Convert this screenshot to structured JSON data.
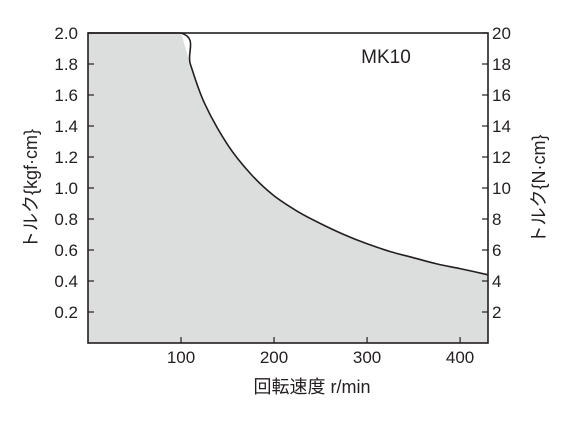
{
  "chart_data": {
    "type": "area",
    "annotation": "MK10",
    "xlabel": "回転速度 r/min",
    "ylabel_left": "トルク{kgf·cm}",
    "ylabel_right": "トルク{N·cm}",
    "xlim": [
      0,
      430
    ],
    "ylim_left": [
      0,
      2.0
    ],
    "ylim_right": [
      0,
      20
    ],
    "x_ticks": [
      100,
      200,
      300,
      400
    ],
    "y_ticks_left": [
      "0.2",
      "0.4",
      "0.6",
      "0.8",
      "1.0",
      "1.2",
      "1.4",
      "1.6",
      "1.8",
      "2.0"
    ],
    "y_ticks_right": [
      "2",
      "4",
      "6",
      "8",
      "10",
      "12",
      "14",
      "16",
      "18",
      "20"
    ],
    "grid": false,
    "fill_color": "#dcdddd",
    "series": [
      {
        "x": [
          0,
          100,
          110,
          125,
          150,
          175,
          200,
          225,
          250,
          275,
          300,
          325,
          350,
          375,
          400,
          430
        ],
        "y": [
          2.0,
          2.0,
          1.8,
          1.55,
          1.28,
          1.09,
          0.95,
          0.85,
          0.77,
          0.7,
          0.64,
          0.59,
          0.55,
          0.51,
          0.48,
          0.44
        ]
      }
    ]
  }
}
